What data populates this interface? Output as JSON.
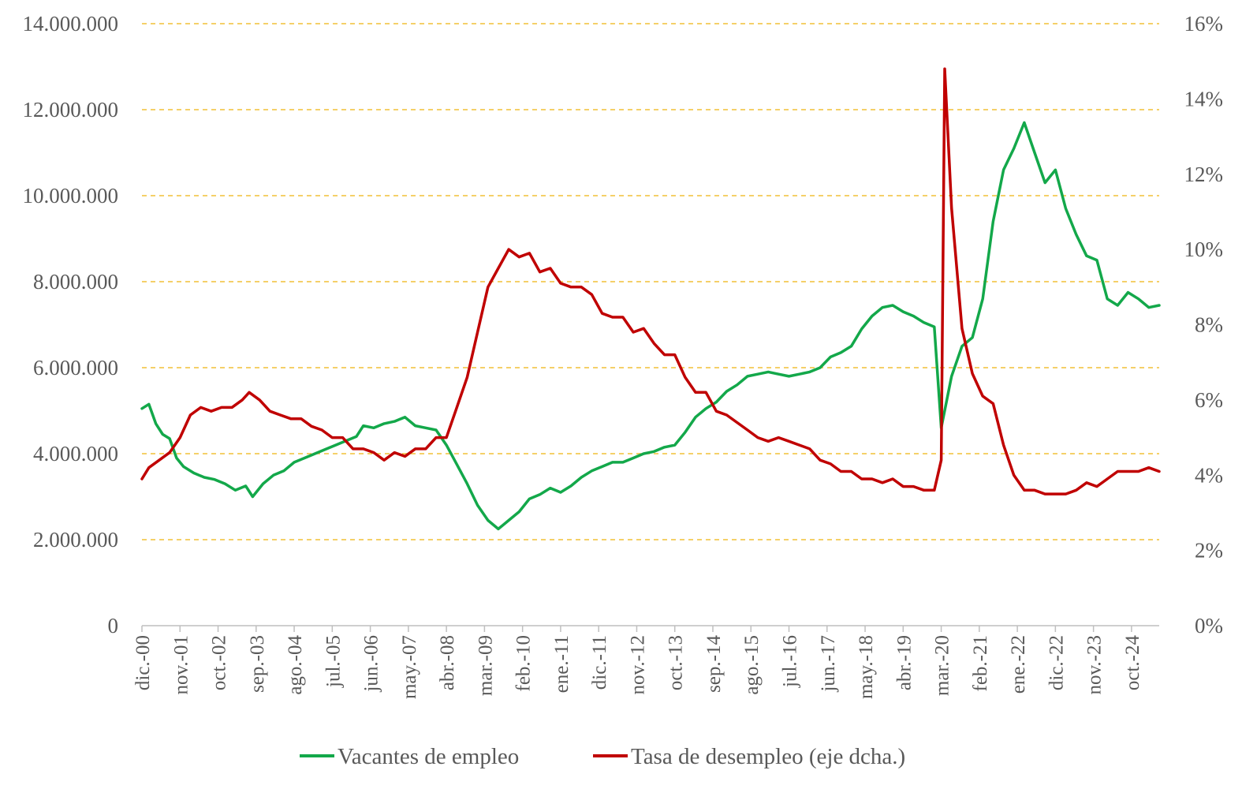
{
  "chart_data": {
    "type": "line",
    "title": "",
    "left_axis": {
      "min": 0,
      "max": 14000000,
      "step": 2000000,
      "tick_labels": [
        "0",
        "2.000.000",
        "4.000.000",
        "6.000.000",
        "8.000.000",
        "10.000.000",
        "12.000.000",
        "14.000.000"
      ]
    },
    "right_axis": {
      "min": 0,
      "max": 16,
      "step": 2,
      "tick_labels": [
        "0%",
        "2%",
        "4%",
        "6%",
        "8%",
        "10%",
        "12%",
        "14%",
        "16%"
      ]
    },
    "x_range": [
      "2000-12",
      "2025-06"
    ],
    "x_tick_labels": [
      "dic.-00",
      "nov.-01",
      "oct.-02",
      "sep.-03",
      "ago.-04",
      "jul.-05",
      "jun.-06",
      "may.-07",
      "abr.-08",
      "mar.-09",
      "feb.-10",
      "ene.-11",
      "dic.-11",
      "nov.-12",
      "oct.-13",
      "sep.-14",
      "ago.-15",
      "jul.-16",
      "jun.-17",
      "may.-18",
      "abr.-19",
      "mar.-20",
      "feb.-21",
      "ene.-22",
      "dic.-22",
      "nov.-23",
      "oct.-24"
    ],
    "grid": {
      "horizontal": true,
      "style": "dashed",
      "color": "#f2c037"
    },
    "legend_position": "bottom",
    "series": [
      {
        "name": "Vacantes de empleo",
        "axis": "left",
        "color": "#13a84a",
        "points": [
          [
            "2000-12",
            5050000
          ],
          [
            "2001-02",
            5150000
          ],
          [
            "2001-04",
            4700000
          ],
          [
            "2001-06",
            4450000
          ],
          [
            "2001-08",
            4350000
          ],
          [
            "2001-10",
            3900000
          ],
          [
            "2001-12",
            3700000
          ],
          [
            "2002-03",
            3550000
          ],
          [
            "2002-06",
            3450000
          ],
          [
            "2002-09",
            3400000
          ],
          [
            "2002-12",
            3300000
          ],
          [
            "2003-03",
            3150000
          ],
          [
            "2003-06",
            3250000
          ],
          [
            "2003-08",
            3000000
          ],
          [
            "2003-11",
            3300000
          ],
          [
            "2004-02",
            3500000
          ],
          [
            "2004-05",
            3600000
          ],
          [
            "2004-08",
            3800000
          ],
          [
            "2004-11",
            3900000
          ],
          [
            "2005-02",
            4000000
          ],
          [
            "2005-05",
            4100000
          ],
          [
            "2005-08",
            4200000
          ],
          [
            "2005-11",
            4300000
          ],
          [
            "2006-02",
            4400000
          ],
          [
            "2006-04",
            4650000
          ],
          [
            "2006-07",
            4600000
          ],
          [
            "2006-10",
            4700000
          ],
          [
            "2007-01",
            4750000
          ],
          [
            "2007-04",
            4850000
          ],
          [
            "2007-07",
            4650000
          ],
          [
            "2007-10",
            4600000
          ],
          [
            "2008-01",
            4550000
          ],
          [
            "2008-04",
            4200000
          ],
          [
            "2008-07",
            3750000
          ],
          [
            "2008-10",
            3300000
          ],
          [
            "2009-01",
            2800000
          ],
          [
            "2009-04",
            2450000
          ],
          [
            "2009-07",
            2250000
          ],
          [
            "2009-10",
            2450000
          ],
          [
            "2010-01",
            2650000
          ],
          [
            "2010-04",
            2950000
          ],
          [
            "2010-07",
            3050000
          ],
          [
            "2010-10",
            3200000
          ],
          [
            "2011-01",
            3100000
          ],
          [
            "2011-04",
            3250000
          ],
          [
            "2011-07",
            3450000
          ],
          [
            "2011-10",
            3600000
          ],
          [
            "2012-01",
            3700000
          ],
          [
            "2012-04",
            3800000
          ],
          [
            "2012-07",
            3800000
          ],
          [
            "2012-10",
            3900000
          ],
          [
            "2013-01",
            4000000
          ],
          [
            "2013-04",
            4050000
          ],
          [
            "2013-07",
            4150000
          ],
          [
            "2013-10",
            4200000
          ],
          [
            "2014-01",
            4500000
          ],
          [
            "2014-04",
            4850000
          ],
          [
            "2014-07",
            5050000
          ],
          [
            "2014-10",
            5200000
          ],
          [
            "2015-01",
            5450000
          ],
          [
            "2015-04",
            5600000
          ],
          [
            "2015-07",
            5800000
          ],
          [
            "2015-10",
            5850000
          ],
          [
            "2016-01",
            5900000
          ],
          [
            "2016-04",
            5850000
          ],
          [
            "2016-07",
            5800000
          ],
          [
            "2016-10",
            5850000
          ],
          [
            "2017-01",
            5900000
          ],
          [
            "2017-04",
            6000000
          ],
          [
            "2017-07",
            6250000
          ],
          [
            "2017-10",
            6350000
          ],
          [
            "2018-01",
            6500000
          ],
          [
            "2018-04",
            6900000
          ],
          [
            "2018-07",
            7200000
          ],
          [
            "2018-10",
            7400000
          ],
          [
            "2019-01",
            7450000
          ],
          [
            "2019-04",
            7300000
          ],
          [
            "2019-07",
            7200000
          ],
          [
            "2019-10",
            7050000
          ],
          [
            "2020-01",
            6950000
          ],
          [
            "2020-03",
            4600000
          ],
          [
            "2020-06",
            5800000
          ],
          [
            "2020-09",
            6500000
          ],
          [
            "2020-12",
            6700000
          ],
          [
            "2021-03",
            7600000
          ],
          [
            "2021-06",
            9400000
          ],
          [
            "2021-09",
            10600000
          ],
          [
            "2021-12",
            11100000
          ],
          [
            "2022-03",
            11700000
          ],
          [
            "2022-06",
            11000000
          ],
          [
            "2022-09",
            10300000
          ],
          [
            "2022-12",
            10600000
          ],
          [
            "2023-03",
            9700000
          ],
          [
            "2023-06",
            9100000
          ],
          [
            "2023-09",
            8600000
          ],
          [
            "2023-12",
            8500000
          ],
          [
            "2024-03",
            7600000
          ],
          [
            "2024-06",
            7450000
          ],
          [
            "2024-09",
            7750000
          ],
          [
            "2024-12",
            7600000
          ],
          [
            "2025-03",
            7400000
          ],
          [
            "2025-06",
            7450000
          ]
        ]
      },
      {
        "name": "Tasa de desempleo (eje dcha.)",
        "axis": "right",
        "color": "#c00000",
        "points": [
          [
            "2000-12",
            3.9
          ],
          [
            "2001-02",
            4.2
          ],
          [
            "2001-05",
            4.4
          ],
          [
            "2001-08",
            4.6
          ],
          [
            "2001-11",
            5.0
          ],
          [
            "2002-02",
            5.6
          ],
          [
            "2002-05",
            5.8
          ],
          [
            "2002-08",
            5.7
          ],
          [
            "2002-11",
            5.8
          ],
          [
            "2003-02",
            5.8
          ],
          [
            "2003-05",
            6.0
          ],
          [
            "2003-07",
            6.2
          ],
          [
            "2003-10",
            6.0
          ],
          [
            "2004-01",
            5.7
          ],
          [
            "2004-04",
            5.6
          ],
          [
            "2004-07",
            5.5
          ],
          [
            "2004-10",
            5.5
          ],
          [
            "2005-01",
            5.3
          ],
          [
            "2005-04",
            5.2
          ],
          [
            "2005-07",
            5.0
          ],
          [
            "2005-10",
            5.0
          ],
          [
            "2006-01",
            4.7
          ],
          [
            "2006-04",
            4.7
          ],
          [
            "2006-07",
            4.6
          ],
          [
            "2006-10",
            4.4
          ],
          [
            "2007-01",
            4.6
          ],
          [
            "2007-04",
            4.5
          ],
          [
            "2007-07",
            4.7
          ],
          [
            "2007-10",
            4.7
          ],
          [
            "2008-01",
            5.0
          ],
          [
            "2008-04",
            5.0
          ],
          [
            "2008-07",
            5.8
          ],
          [
            "2008-10",
            6.6
          ],
          [
            "2009-01",
            7.8
          ],
          [
            "2009-04",
            9.0
          ],
          [
            "2009-07",
            9.5
          ],
          [
            "2009-10",
            10.0
          ],
          [
            "2010-01",
            9.8
          ],
          [
            "2010-04",
            9.9
          ],
          [
            "2010-07",
            9.4
          ],
          [
            "2010-10",
            9.5
          ],
          [
            "2011-01",
            9.1
          ],
          [
            "2011-04",
            9.0
          ],
          [
            "2011-07",
            9.0
          ],
          [
            "2011-10",
            8.8
          ],
          [
            "2012-01",
            8.3
          ],
          [
            "2012-04",
            8.2
          ],
          [
            "2012-07",
            8.2
          ],
          [
            "2012-10",
            7.8
          ],
          [
            "2013-01",
            7.9
          ],
          [
            "2013-04",
            7.5
          ],
          [
            "2013-07",
            7.2
          ],
          [
            "2013-10",
            7.2
          ],
          [
            "2014-01",
            6.6
          ],
          [
            "2014-04",
            6.2
          ],
          [
            "2014-07",
            6.2
          ],
          [
            "2014-10",
            5.7
          ],
          [
            "2015-01",
            5.6
          ],
          [
            "2015-04",
            5.4
          ],
          [
            "2015-07",
            5.2
          ],
          [
            "2015-10",
            5.0
          ],
          [
            "2016-01",
            4.9
          ],
          [
            "2016-04",
            5.0
          ],
          [
            "2016-07",
            4.9
          ],
          [
            "2016-10",
            4.8
          ],
          [
            "2017-01",
            4.7
          ],
          [
            "2017-04",
            4.4
          ],
          [
            "2017-07",
            4.3
          ],
          [
            "2017-10",
            4.1
          ],
          [
            "2018-01",
            4.1
          ],
          [
            "2018-04",
            3.9
          ],
          [
            "2018-07",
            3.9
          ],
          [
            "2018-10",
            3.8
          ],
          [
            "2019-01",
            3.9
          ],
          [
            "2019-04",
            3.7
          ],
          [
            "2019-07",
            3.7
          ],
          [
            "2019-10",
            3.6
          ],
          [
            "2020-01",
            3.6
          ],
          [
            "2020-03",
            4.4
          ],
          [
            "2020-04",
            14.8
          ],
          [
            "2020-06",
            11.1
          ],
          [
            "2020-09",
            7.9
          ],
          [
            "2020-12",
            6.7
          ],
          [
            "2021-03",
            6.1
          ],
          [
            "2021-06",
            5.9
          ],
          [
            "2021-09",
            4.8
          ],
          [
            "2021-12",
            4.0
          ],
          [
            "2022-03",
            3.6
          ],
          [
            "2022-06",
            3.6
          ],
          [
            "2022-09",
            3.5
          ],
          [
            "2022-12",
            3.5
          ],
          [
            "2023-03",
            3.5
          ],
          [
            "2023-06",
            3.6
          ],
          [
            "2023-09",
            3.8
          ],
          [
            "2023-12",
            3.7
          ],
          [
            "2024-03",
            3.9
          ],
          [
            "2024-06",
            4.1
          ],
          [
            "2024-09",
            4.1
          ],
          [
            "2024-12",
            4.1
          ],
          [
            "2025-03",
            4.2
          ],
          [
            "2025-06",
            4.1
          ]
        ]
      }
    ]
  }
}
